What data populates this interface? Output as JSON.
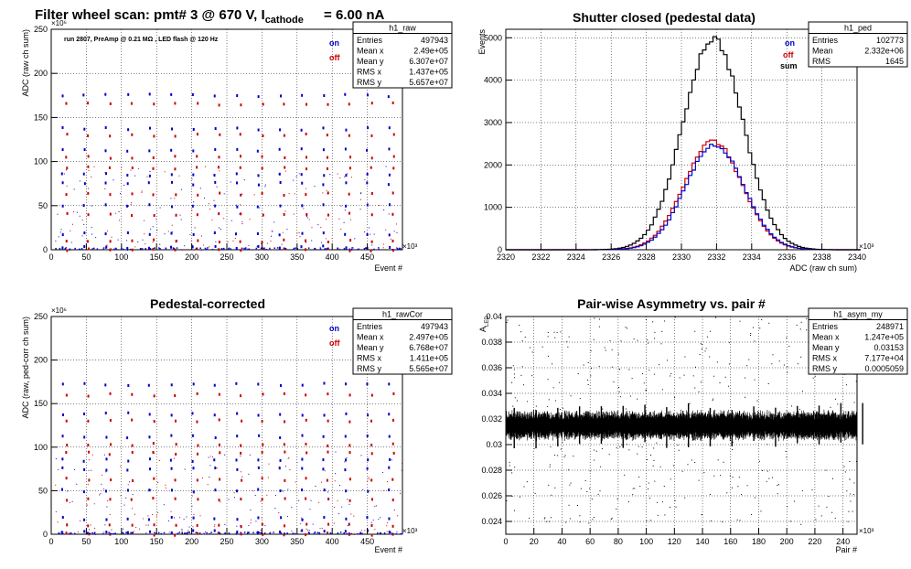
{
  "canvas_title": {
    "prefix": "Filter wheel scan: pmt#   3 @   670 V, I",
    "subscript": "cathode",
    "suffix": "= 6.00 nA"
  },
  "colors": {
    "on": "#0000cc",
    "off": "#cc0000",
    "sum": "#000000",
    "frame": "#000000"
  },
  "pads": [
    {
      "id": "raw",
      "title": "",
      "subtitle": "run 2807, PreAmp @ 0.21 MΩ , LED flash @  120 Hz",
      "ylabel": "ADC (raw ch sum)",
      "xlabel": "Event #",
      "yexp": "×10⁶",
      "xexp": "×10³",
      "legend": [
        "on",
        "off"
      ],
      "statbox": {
        "name": "h1_raw",
        "rows": [
          [
            "Entries",
            "497943"
          ],
          [
            "Mean x",
            "2.49e+05"
          ],
          [
            "Mean y",
            "6.307e+07"
          ],
          [
            "RMS x",
            "1.437e+05"
          ],
          [
            "RMS y",
            "5.657e+07"
          ]
        ]
      }
    },
    {
      "id": "ped",
      "title": "Shutter closed (pedestal data)",
      "ylabel": "Events",
      "xlabel": "ADC (raw ch sum)",
      "xexp": "×10³",
      "legend": [
        "on",
        "off",
        "sum"
      ],
      "statbox": {
        "name": "h1_ped",
        "rows": [
          [
            "Entries",
            "102773"
          ],
          [
            "Mean",
            "2.332e+06"
          ],
          [
            "RMS",
            "1645"
          ]
        ]
      }
    },
    {
      "id": "cor",
      "title": "Pedestal-corrected",
      "ylabel": "ADC (raw, ped-corr ch sum)",
      "xlabel": "Event #",
      "yexp": "×10⁶",
      "xexp": "×10³",
      "legend": [
        "on",
        "off"
      ],
      "statbox": {
        "name": "h1_rawCor",
        "rows": [
          [
            "Entries",
            "497943"
          ],
          [
            "Mean x",
            "2.497e+05"
          ],
          [
            "Mean y",
            "6.768e+07"
          ],
          [
            "RMS x",
            "1.411e+05"
          ],
          [
            "RMS y",
            "5.565e+07"
          ]
        ]
      }
    },
    {
      "id": "asym",
      "title": "Pair-wise Asymmetry vs. pair #",
      "ylabel": "A",
      "ylabel_sub": "LED",
      "xlabel": "Pair #",
      "xexp": "×10³",
      "statbox": {
        "name": "h1_asym_my",
        "rows": [
          [
            "Entries",
            "248971"
          ],
          [
            "Mean x",
            "1.247e+05"
          ],
          [
            "Mean y",
            "0.03153"
          ],
          [
            "RMS x",
            "7.177e+04"
          ],
          [
            "RMS y",
            "0.0005059"
          ]
        ]
      }
    }
  ],
  "chart_data": [
    {
      "type": "scatter",
      "name": "h1_raw",
      "xlabel": "Event #",
      "ylabel": "ADC (raw ch sum)",
      "x_unit": "×10³",
      "y_unit": "×10⁶",
      "xlim": [
        0,
        500
      ],
      "ylim": [
        0,
        250
      ],
      "x_ticks": [
        0,
        50,
        100,
        150,
        200,
        250,
        300,
        350,
        400,
        450
      ],
      "y_ticks": [
        0,
        50,
        100,
        150,
        200,
        250
      ],
      "grid": true,
      "legend_position": "top-right",
      "bands_on": [
        175,
        137,
        113,
        85,
        75,
        50,
        18,
        3
      ],
      "bands_off": [
        165,
        130,
        105,
        93,
        63,
        40,
        10,
        0
      ],
      "burst_period": 31
    },
    {
      "type": "line",
      "name": "h1_ped",
      "xlabel": "ADC (raw ch sum)",
      "ylabel": "Events",
      "x_unit": "×10³",
      "xlim": [
        2320,
        2340
      ],
      "ylim": [
        0,
        5200
      ],
      "x_ticks": [
        2320,
        2322,
        2324,
        2326,
        2328,
        2330,
        2332,
        2334,
        2336,
        2338,
        2340
      ],
      "y_ticks": [
        0,
        1000,
        2000,
        3000,
        4000,
        5000
      ],
      "grid": true,
      "legend_position": "top-right",
      "series": [
        {
          "name": "sum",
          "mean": 2331.8,
          "sigma": 1.7,
          "peak": 4980
        },
        {
          "name": "on",
          "mean": 2331.9,
          "sigma": 1.65,
          "peak": 2480
        },
        {
          "name": "off",
          "mean": 2331.8,
          "sigma": 1.65,
          "peak": 2560
        }
      ]
    },
    {
      "type": "scatter",
      "name": "h1_rawCor",
      "xlabel": "Event #",
      "ylabel": "ADC (raw, ped-corr ch sum)",
      "x_unit": "×10³",
      "y_unit": "×10⁶",
      "xlim": [
        0,
        500
      ],
      "ylim": [
        0,
        250
      ],
      "x_ticks": [
        0,
        50,
        100,
        150,
        200,
        250,
        300,
        350,
        400,
        450
      ],
      "y_ticks": [
        0,
        50,
        100,
        150,
        200,
        250
      ],
      "grid": true,
      "legend_position": "top-right",
      "bands_on": [
        172,
        138,
        112,
        85,
        75,
        50,
        18,
        3
      ],
      "bands_off": [
        160,
        130,
        103,
        93,
        63,
        40,
        10,
        0
      ],
      "burst_period": 31
    },
    {
      "type": "scatter",
      "name": "h1_asym_my",
      "xlabel": "Pair #",
      "ylabel": "A_LED",
      "x_unit": "×10³",
      "xlim": [
        0,
        250
      ],
      "ylim": [
        0.023,
        0.04
      ],
      "x_ticks": [
        0,
        20,
        40,
        60,
        80,
        100,
        120,
        140,
        160,
        180,
        200,
        220,
        240
      ],
      "y_ticks": [
        0.024,
        0.026,
        0.028,
        0.03,
        0.032,
        0.034,
        0.036,
        0.038,
        0.04
      ],
      "grid": true,
      "band_center": 0.0315,
      "band_halfwidth": 0.0007,
      "spike_period": 15.5
    }
  ]
}
